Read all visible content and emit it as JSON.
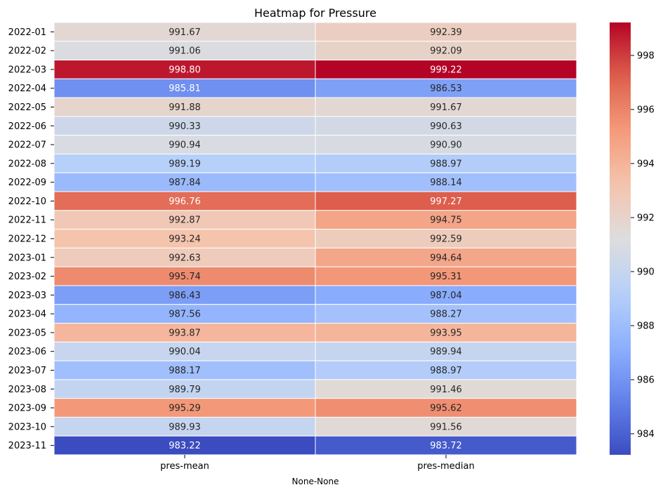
{
  "chart_data": {
    "type": "heatmap",
    "title": "Heatmap for Pressure",
    "xlabel": "None-None",
    "ylabel": "",
    "columns": [
      "pres-mean",
      "pres-median"
    ],
    "rows": [
      "2022-01",
      "2022-02",
      "2022-03",
      "2022-04",
      "2022-05",
      "2022-06",
      "2022-07",
      "2022-08",
      "2022-09",
      "2022-10",
      "2022-11",
      "2022-12",
      "2023-01",
      "2023-02",
      "2023-03",
      "2023-04",
      "2023-05",
      "2023-06",
      "2023-07",
      "2023-08",
      "2023-09",
      "2023-10",
      "2023-11"
    ],
    "values": [
      [
        991.67,
        992.39
      ],
      [
        991.06,
        992.09
      ],
      [
        998.8,
        999.22
      ],
      [
        985.81,
        986.53
      ],
      [
        991.88,
        991.67
      ],
      [
        990.33,
        990.63
      ],
      [
        990.94,
        990.9
      ],
      [
        989.19,
        988.97
      ],
      [
        987.84,
        988.14
      ],
      [
        996.76,
        997.27
      ],
      [
        992.87,
        994.75
      ],
      [
        993.24,
        992.59
      ],
      [
        992.63,
        994.64
      ],
      [
        995.74,
        995.31
      ],
      [
        986.43,
        987.04
      ],
      [
        987.56,
        988.27
      ],
      [
        993.87,
        993.95
      ],
      [
        990.04,
        989.94
      ],
      [
        988.17,
        988.97
      ],
      [
        989.79,
        991.46
      ],
      [
        995.29,
        995.62
      ],
      [
        989.93,
        991.56
      ],
      [
        983.22,
        983.72
      ]
    ],
    "value_format_decimals": 2,
    "colormap": "coolwarm",
    "colorbar": {
      "vmin": 983.22,
      "vmax": 999.22,
      "ticks": [
        984,
        986,
        988,
        990,
        992,
        994,
        996,
        998
      ]
    },
    "cell_border_color": "#ffffff"
  }
}
